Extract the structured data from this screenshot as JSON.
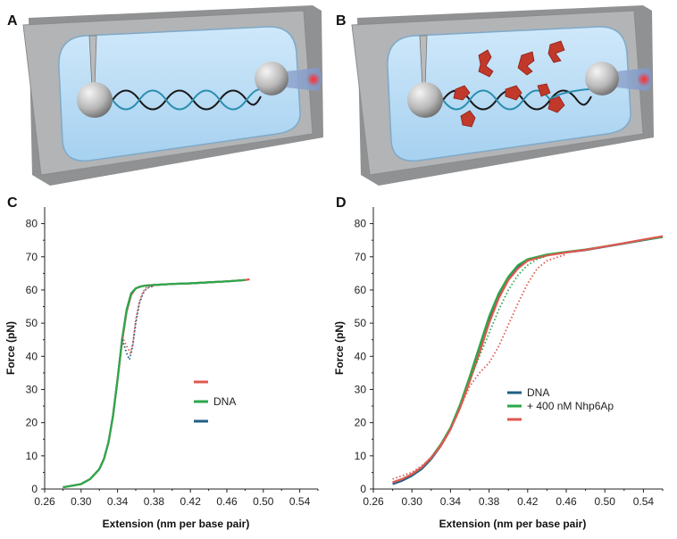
{
  "panels": {
    "a": {
      "letter": "A"
    },
    "b": {
      "letter": "B"
    },
    "c": {
      "letter": "C"
    },
    "d": {
      "letter": "D"
    }
  },
  "colors": {
    "blue": "#1f5f86",
    "green": "#2aa84a",
    "red": "#e0584f",
    "chamber": "#a7a9ab",
    "fluid": "#b9dcf4",
    "protein": "#c0392b"
  },
  "chart_data": [
    {
      "panel": "C",
      "type": "line",
      "xlabel": "Extension (nm per base pair)",
      "ylabel": "Force (pN)",
      "xlim": [
        0.26,
        0.56
      ],
      "ylim": [
        0,
        85
      ],
      "xticks": [
        "0.26",
        "0.30",
        "0.34",
        "0.38",
        "0.42",
        "0.46",
        "0.50",
        "0.54"
      ],
      "yticks": [
        "0",
        "10",
        "20",
        "30",
        "40",
        "50",
        "60",
        "70",
        "80"
      ],
      "legend_position": "center-right",
      "legend": [
        "",
        "DNA",
        ""
      ],
      "series": [
        {
          "color": "blue",
          "style": "solid",
          "x": [
            0.28,
            0.29,
            0.3,
            0.31,
            0.32,
            0.325,
            0.33,
            0.335,
            0.34,
            0.345,
            0.35,
            0.355,
            0.36,
            0.365,
            0.37,
            0.38,
            0.4,
            0.42,
            0.44,
            0.46,
            0.48
          ],
          "y": [
            0.5,
            1,
            1.5,
            3,
            6,
            9,
            14,
            22,
            33,
            45,
            54,
            59,
            60.5,
            61,
            61.3,
            61.5,
            61.8,
            62,
            62.3,
            62.6,
            63
          ]
        },
        {
          "color": "red",
          "style": "solid",
          "x": [
            0.28,
            0.29,
            0.3,
            0.31,
            0.32,
            0.325,
            0.33,
            0.335,
            0.34,
            0.345,
            0.35,
            0.355,
            0.36,
            0.365,
            0.37,
            0.38,
            0.4,
            0.42,
            0.44,
            0.46,
            0.48,
            0.485
          ],
          "y": [
            0.5,
            1,
            1.5,
            3,
            6,
            9,
            14,
            22,
            33,
            44.5,
            53.5,
            58.5,
            60.5,
            61,
            61.3,
            61.5,
            61.8,
            62,
            62.3,
            62.6,
            63,
            63.2
          ]
        },
        {
          "color": "green",
          "style": "solid",
          "x": [
            0.28,
            0.29,
            0.3,
            0.31,
            0.32,
            0.325,
            0.33,
            0.335,
            0.34,
            0.345,
            0.35,
            0.355,
            0.36,
            0.365,
            0.37,
            0.38,
            0.4,
            0.42,
            0.44,
            0.46,
            0.48
          ],
          "y": [
            0.5,
            1,
            1.5,
            3,
            6,
            9,
            14,
            22,
            33,
            45,
            54,
            59,
            60.5,
            61,
            61.3,
            61.5,
            61.8,
            62,
            62.3,
            62.6,
            63
          ]
        },
        {
          "color": "blue",
          "style": "dotted",
          "x": [
            0.345,
            0.35,
            0.353,
            0.356,
            0.36,
            0.364,
            0.368,
            0.372,
            0.38
          ],
          "y": [
            45,
            41,
            39,
            42,
            50,
            56,
            59,
            60.5,
            61.2
          ]
        },
        {
          "color": "red",
          "style": "dotted",
          "x": [
            0.345,
            0.35,
            0.354,
            0.357,
            0.36,
            0.364,
            0.368,
            0.372,
            0.38
          ],
          "y": [
            46,
            43,
            41,
            44,
            51,
            56.5,
            59.5,
            60.8,
            61.3
          ]
        }
      ]
    },
    {
      "panel": "D",
      "type": "line",
      "xlabel": "Extension (nm per base pair)",
      "ylabel": "Force (pN)",
      "xlim": [
        0.26,
        0.56
      ],
      "ylim": [
        0,
        85
      ],
      "xticks": [
        "0.26",
        "0.30",
        "0.34",
        "0.38",
        "0.42",
        "0.46",
        "0.50",
        "0.54"
      ],
      "yticks": [
        "0",
        "10",
        "20",
        "30",
        "40",
        "50",
        "60",
        "70",
        "80"
      ],
      "legend_position": "center-right",
      "legend": [
        "DNA",
        "+ 400 nM Nhp6Ap",
        ""
      ],
      "series": [
        {
          "color": "blue",
          "style": "solid",
          "x": [
            0.28,
            0.29,
            0.3,
            0.31,
            0.32,
            0.33,
            0.34,
            0.35,
            0.36,
            0.37,
            0.38,
            0.39,
            0.4,
            0.41,
            0.42,
            0.44,
            0.46,
            0.48,
            0.5,
            0.52,
            0.54,
            0.56
          ],
          "y": [
            1.5,
            2.5,
            4,
            6,
            9,
            13,
            18,
            25,
            33,
            42,
            51,
            58,
            63.5,
            67,
            69,
            70.5,
            71.3,
            72,
            73,
            74,
            75,
            76
          ]
        },
        {
          "color": "green",
          "style": "solid",
          "x": [
            0.28,
            0.29,
            0.3,
            0.31,
            0.32,
            0.33,
            0.34,
            0.35,
            0.36,
            0.37,
            0.38,
            0.39,
            0.4,
            0.41,
            0.42,
            0.44,
            0.46,
            0.48,
            0.5,
            0.52,
            0.54,
            0.56
          ],
          "y": [
            2,
            3,
            4.5,
            6.5,
            9.5,
            13.5,
            18.5,
            25.5,
            34,
            43,
            52,
            59,
            64,
            67.5,
            69.3,
            70.7,
            71.5,
            72.2,
            73.1,
            74.1,
            75.1,
            76
          ]
        },
        {
          "color": "red",
          "style": "solid",
          "x": [
            0.28,
            0.29,
            0.3,
            0.31,
            0.32,
            0.33,
            0.34,
            0.35,
            0.36,
            0.37,
            0.38,
            0.39,
            0.4,
            0.41,
            0.42,
            0.44,
            0.46,
            0.48,
            0.5,
            0.52,
            0.54,
            0.56
          ],
          "y": [
            2,
            3,
            4.5,
            6.5,
            9.5,
            13,
            18,
            24.5,
            32.5,
            41,
            50,
            57.5,
            63,
            66.5,
            68.8,
            70.4,
            71.3,
            72.1,
            73.1,
            74.1,
            75.2,
            76.2
          ]
        },
        {
          "color": "green",
          "style": "dotted",
          "x": [
            0.36,
            0.37,
            0.38,
            0.39,
            0.4,
            0.41,
            0.42,
            0.43,
            0.44
          ],
          "y": [
            33,
            40,
            47,
            54,
            60,
            64.5,
            67.5,
            69.3,
            70.3
          ]
        },
        {
          "color": "red",
          "style": "dotted",
          "x": [
            0.28,
            0.3,
            0.32,
            0.34,
            0.36,
            0.37,
            0.38,
            0.39,
            0.4,
            0.41,
            0.42,
            0.43,
            0.44,
            0.46
          ],
          "y": [
            3,
            5,
            9,
            18,
            31,
            35,
            38,
            43,
            49.5,
            56,
            62,
            66.5,
            68.8,
            70.8
          ]
        }
      ]
    }
  ]
}
